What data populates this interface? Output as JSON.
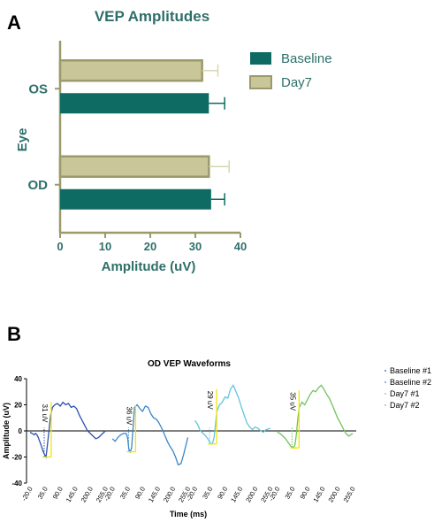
{
  "panels": {
    "a_letter": "A",
    "b_letter": "B"
  },
  "chart_data": [
    {
      "type": "bar",
      "orientation": "horizontal",
      "title": "VEP Amplitudes",
      "xlabel": "Amplitude (uV)",
      "ylabel": "Eye",
      "xlim": [
        0,
        40
      ],
      "xticks": [
        "0",
        "10",
        "20",
        "30",
        "40"
      ],
      "categories": [
        "OS",
        "OD"
      ],
      "legend_position": "top-right",
      "series": [
        {
          "name": "Baseline",
          "color": "#0e6b63",
          "values": [
            33,
            33.5
          ],
          "errors": [
            3.5,
            3
          ]
        },
        {
          "name": "Day7",
          "color": "#c9c79a",
          "edge_color": "#9a9a6a",
          "values": [
            31.5,
            33
          ],
          "errors": [
            3.5,
            4.5
          ]
        }
      ]
    },
    {
      "type": "line",
      "title": "OD VEP Waveforms",
      "xlabel": "Time (ms)",
      "ylabel": "Amplitude (uV)",
      "ylim": [
        -40,
        40
      ],
      "yticks": [
        "40",
        "20",
        "0",
        "-20",
        "-40"
      ],
      "xtick_labels": [
        "-20.0",
        "35.0",
        "90.0",
        "145.0",
        "200.0",
        "255.0"
      ],
      "legend_position": "right",
      "series": [
        {
          "name": "Baseline #1",
          "color": "#2e4fb3",
          "x": [
            -20,
            -12,
            -5,
            0,
            5,
            10,
            15,
            22,
            28,
            33,
            38,
            40,
            45,
            50,
            55,
            62,
            70,
            80,
            90,
            100,
            110,
            120,
            130,
            140,
            150,
            160,
            170,
            180,
            190,
            200,
            210,
            220,
            230,
            240,
            250,
            255
          ],
          "y": [
            -1,
            -2,
            -3,
            -2,
            -3,
            -5,
            -8,
            -12,
            -16,
            -18,
            -20,
            -17,
            -8,
            2,
            12,
            18,
            20,
            21,
            19,
            22,
            20,
            21,
            18,
            19,
            17,
            12,
            8,
            4,
            0,
            -2,
            -4,
            -6,
            -5,
            -3,
            -1,
            0
          ]
        },
        {
          "name": "Baseline #2",
          "color": "#3b86c9",
          "x": [
            -20,
            -10,
            0,
            10,
            20,
            30,
            35,
            40,
            45,
            50,
            55,
            60,
            70,
            80,
            90,
            100,
            110,
            120,
            130,
            140,
            150,
            160,
            170,
            180,
            190,
            200,
            210,
            220,
            230,
            240,
            255
          ],
          "y": [
            -6,
            -8,
            -5,
            -3,
            -2,
            -2,
            -5,
            -14,
            -16,
            -13,
            2,
            18,
            20,
            17,
            15,
            19,
            18,
            13,
            10,
            9,
            6,
            2,
            -3,
            -8,
            -12,
            -15,
            -20,
            -26,
            -25,
            -18,
            -5
          ]
        },
        {
          "name": "Day7 #1",
          "color": "#62c4dc",
          "x": [
            -20,
            -10,
            0,
            10,
            20,
            30,
            35,
            40,
            45,
            50,
            55,
            60,
            70,
            80,
            90,
            100,
            110,
            120,
            130,
            140,
            150,
            160,
            170,
            180,
            190,
            200,
            210,
            220,
            230,
            240,
            255
          ],
          "y": [
            8,
            5,
            0,
            -2,
            -4,
            -7,
            -9,
            -10,
            -9,
            -5,
            5,
            15,
            20,
            22,
            26,
            25,
            32,
            35,
            30,
            25,
            18,
            12,
            6,
            3,
            1,
            3,
            2,
            0,
            -1,
            1,
            2
          ]
        },
        {
          "name": "Day7 #2",
          "color": "#6fc45a",
          "x": [
            -20,
            -10,
            0,
            10,
            20,
            30,
            35,
            40,
            45,
            50,
            55,
            60,
            70,
            80,
            90,
            100,
            110,
            120,
            130,
            140,
            150,
            160,
            170,
            180,
            190,
            200,
            210,
            220,
            230,
            240,
            255
          ],
          "y": [
            -1,
            -2,
            -4,
            -6,
            -9,
            -12,
            -12,
            -13,
            -10,
            -2,
            10,
            18,
            22,
            20,
            24,
            28,
            31,
            30,
            33,
            35,
            32,
            28,
            25,
            20,
            15,
            10,
            6,
            2,
            -2,
            -4,
            -2
          ]
        }
      ],
      "annotations": [
        "31 uV",
        "36 uV",
        "29 uV",
        "35 uV"
      ]
    }
  ]
}
